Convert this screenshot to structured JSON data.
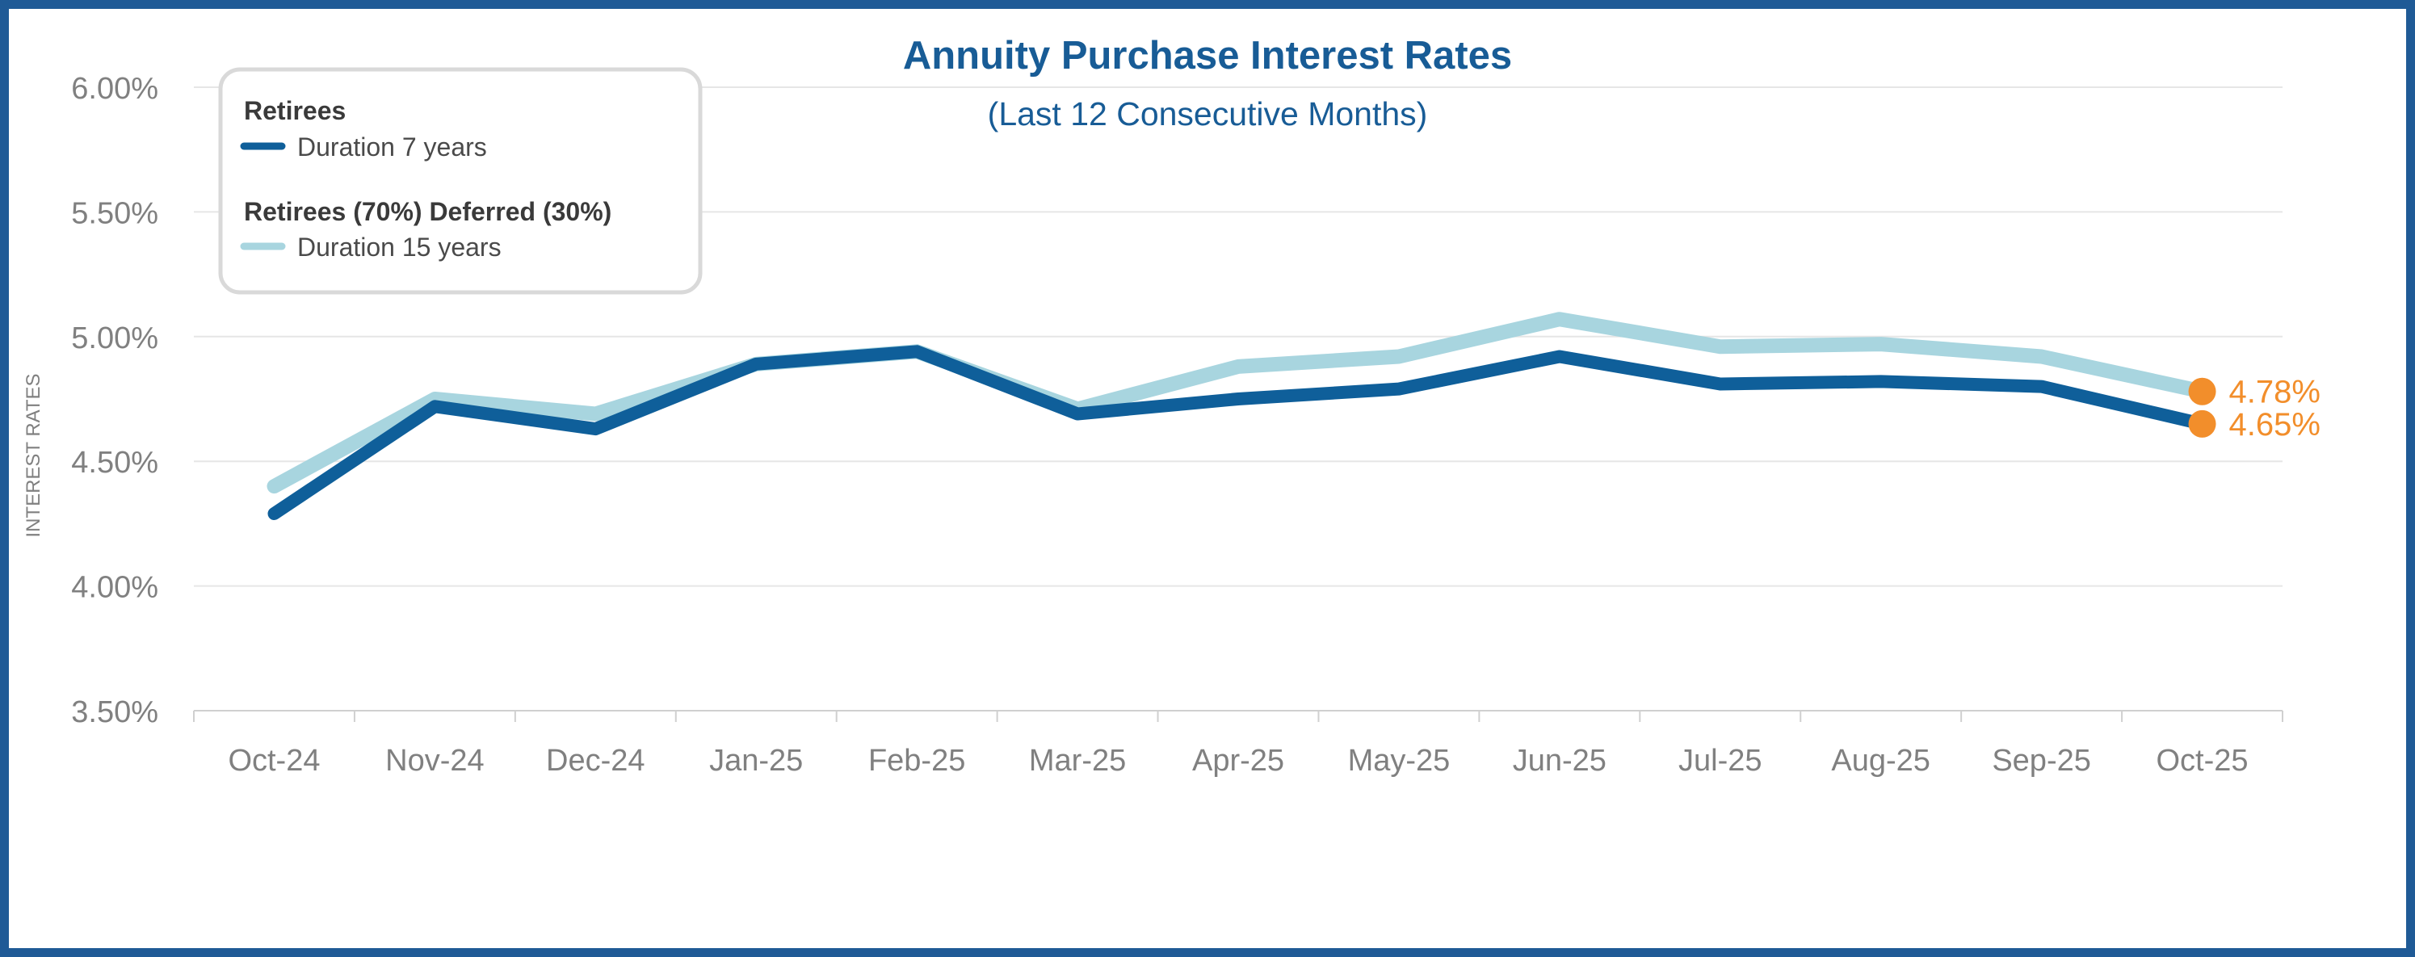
{
  "chart_data": {
    "type": "line",
    "title": "Annuity Purchase Interest Rates",
    "subtitle": "(Last 12 Consecutive Months)",
    "xlabel": "",
    "ylabel": "INTEREST RATES",
    "categories": [
      "Oct-24",
      "Nov-24",
      "Dec-24",
      "Jan-25",
      "Feb-25",
      "Mar-25",
      "Apr-25",
      "May-25",
      "Jun-25",
      "Jul-25",
      "Aug-25",
      "Sep-25",
      "Oct-25"
    ],
    "ylim": [
      3.5,
      6.0
    ],
    "yticks": [
      3.5,
      4.0,
      4.5,
      5.0,
      5.5,
      6.0
    ],
    "ytick_labels": [
      "3.50%",
      "4.00%",
      "4.50%",
      "5.00%",
      "5.50%",
      "6.00%"
    ],
    "grid": true,
    "legend_position": "top-left",
    "series": [
      {
        "name": "Retirees (70%) Deferred (30%)",
        "label": "Duration 15 years",
        "color": "#a8d5df",
        "values": [
          4.4,
          4.75,
          4.69,
          4.89,
          4.94,
          4.71,
          4.88,
          4.92,
          5.07,
          4.96,
          4.97,
          4.92,
          4.78
        ],
        "end_label": "4.78%"
      },
      {
        "name": "Retirees",
        "label": "Duration 7 years",
        "color": "#0f5f9a",
        "values": [
          4.29,
          4.72,
          4.63,
          4.89,
          4.94,
          4.69,
          4.75,
          4.79,
          4.92,
          4.81,
          4.82,
          4.8,
          4.65
        ],
        "end_label": "4.65%"
      }
    ],
    "marker_color": "#f28e2b"
  }
}
